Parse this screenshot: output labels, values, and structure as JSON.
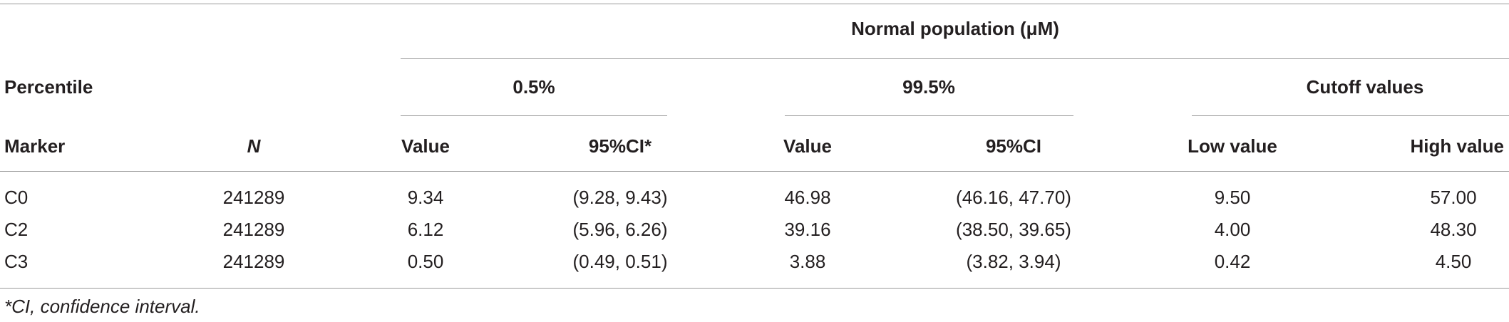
{
  "table": {
    "header": {
      "group_title": "Normal population (μM)",
      "percentile_label": "Percentile",
      "marker_label": "Marker",
      "n_label": "N",
      "p05_label": "0.5%",
      "p995_label": "99.5%",
      "cutoff_label": "Cutoff values",
      "value_label_1": "Value",
      "ci_label_1": "95%CI*",
      "value_label_2": "Value",
      "ci_label_2": "95%CI",
      "low_label": "Low value",
      "high_label": "High value"
    },
    "rows": [
      {
        "marker": "C0",
        "n": "241289",
        "v1": "9.34",
        "ci1": "(9.28, 9.43)",
        "v2": "46.98",
        "ci2": "(46.16, 47.70)",
        "low": "9.50",
        "high": "57.00"
      },
      {
        "marker": "C2",
        "n": "241289",
        "v1": "6.12",
        "ci1": "(5.96, 6.26)",
        "v2": "39.16",
        "ci2": "(38.50, 39.65)",
        "low": "4.00",
        "high": "48.30"
      },
      {
        "marker": "C3",
        "n": "241289",
        "v1": "0.50",
        "ci1": "(0.49, 0.51)",
        "v2": "3.88",
        "ci2": "(3.82, 3.94)",
        "low": "0.42",
        "high": "4.50"
      }
    ],
    "footnote": "*CI, confidence interval."
  }
}
